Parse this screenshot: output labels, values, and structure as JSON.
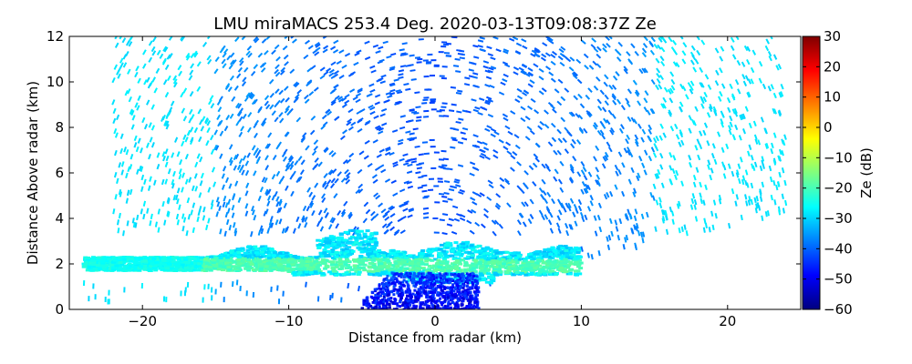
{
  "chart_data": {
    "type": "heatmap",
    "title": "LMU miraMACS 253.4 Deg. 2020-03-13T09:08:37Z  Ze",
    "xlabel": "Distance from radar (km)",
    "ylabel": "Distance Above radar  (km)",
    "xlim": [
      -25,
      25
    ],
    "ylim": [
      0,
      12
    ],
    "xticks": [
      -20,
      -10,
      0,
      10,
      20
    ],
    "xtick_labels": [
      "−20",
      "−10",
      "0",
      "10",
      "20"
    ],
    "yticks": [
      0,
      2,
      4,
      6,
      8,
      10,
      12
    ],
    "ytick_labels": [
      "0",
      "2",
      "4",
      "6",
      "8",
      "10",
      "12"
    ],
    "colorbar": {
      "label": "Ze (dB)",
      "range": [
        -60,
        30
      ],
      "ticks": [
        30,
        20,
        10,
        0,
        -10,
        -20,
        -30,
        -40,
        -50,
        -60
      ],
      "tick_labels": [
        "30",
        "20",
        "10",
        "0",
        "−10",
        "−20",
        "−30",
        "−40",
        "−50",
        "−60"
      ],
      "colormap": "jet",
      "colors": [
        "#00007f",
        "#0000ff",
        "#007fff",
        "#00ffff",
        "#7fff7f",
        "#ffff00",
        "#ff7f00",
        "#ff0000",
        "#7f0000"
      ]
    },
    "regions": [
      {
        "name": "high-altitude sparse echoes",
        "x_range": [
          -24,
          24
        ],
        "y_range": [
          4,
          12
        ],
        "ze_range": [
          -40,
          -25
        ]
      },
      {
        "name": "cloud layer",
        "x_range": [
          -24,
          10
        ],
        "y_range": [
          1.2,
          3.3
        ],
        "ze_range": [
          -30,
          -15
        ]
      },
      {
        "name": "near-radar low echoes",
        "x_range": [
          -5,
          3
        ],
        "y_range": [
          0,
          1.5
        ],
        "ze_range": [
          -60,
          -45
        ]
      }
    ]
  }
}
